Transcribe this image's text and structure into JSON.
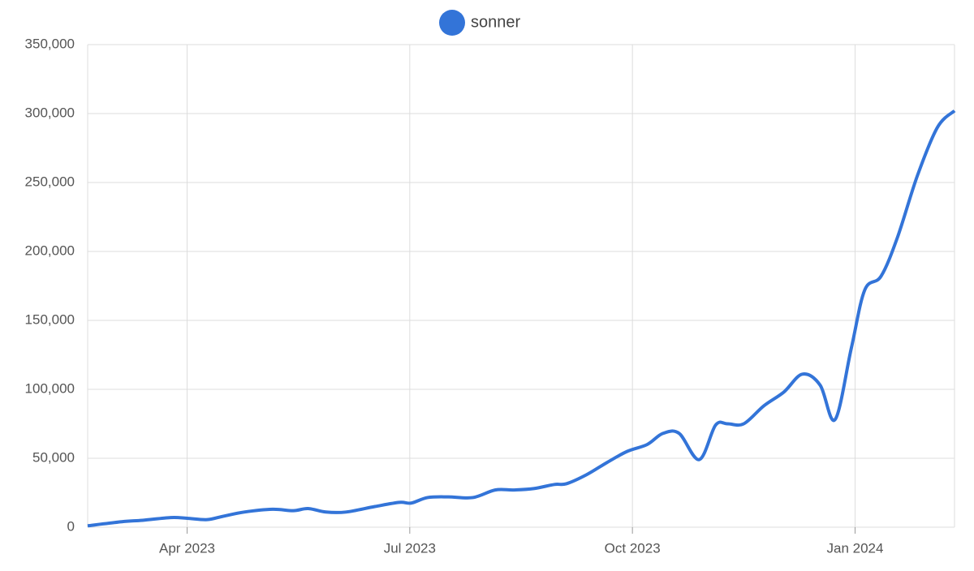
{
  "chart_data": {
    "type": "line",
    "x": [
      1.66,
      2.12,
      2.4,
      2.78,
      3.0,
      3.27,
      3.49,
      3.77,
      4.15,
      4.43,
      4.63,
      4.87,
      5.14,
      5.53,
      5.86,
      6.02,
      6.24,
      6.52,
      6.85,
      7.15,
      7.4,
      7.67,
      7.95,
      8.11,
      8.38,
      8.66,
      8.93,
      9.2,
      9.41,
      9.63,
      9.9,
      10.12,
      10.28,
      10.5,
      10.77,
      11.04,
      11.29,
      11.53,
      11.73,
      11.95,
      12.13,
      12.35,
      12.57,
      12.84,
      13.11,
      13.34
    ],
    "series": [
      {
        "name": "sonner",
        "color": "#3374d8",
        "values": [
          1000,
          4000,
          5000,
          7000,
          6500,
          5500,
          8000,
          11000,
          13000,
          12000,
          13500,
          11000,
          11000,
          15000,
          18000,
          17500,
          21500,
          22000,
          21500,
          27000,
          27000,
          28000,
          31000,
          31500,
          38000,
          47000,
          55000,
          60000,
          68000,
          68000,
          49000,
          74000,
          75000,
          75000,
          88000,
          98000,
          111000,
          103000,
          78000,
          130000,
          172000,
          182000,
          210000,
          255000,
          290000,
          302000
        ]
      }
    ],
    "xlim": [
      1.66,
      13.34
    ],
    "xticks": [
      {
        "value": 3,
        "label": "Apr 2023"
      },
      {
        "value": 6,
        "label": "Jul 2023"
      },
      {
        "value": 9,
        "label": "Oct 2023"
      },
      {
        "value": 12,
        "label": "Jan 2024"
      }
    ],
    "ylim": [
      0,
      350000
    ],
    "yticks": [
      0,
      {
        "value": 50000,
        "label": "50,000"
      },
      {
        "value": 100000,
        "label": "100,000"
      },
      {
        "value": 150000,
        "label": "150,000"
      },
      {
        "value": 200000,
        "label": "200,000"
      },
      {
        "value": 250000,
        "label": "250,000"
      },
      {
        "value": 300000,
        "label": "300,000"
      },
      {
        "value": 350000,
        "label": "350,000"
      }
    ],
    "grid": true
  }
}
